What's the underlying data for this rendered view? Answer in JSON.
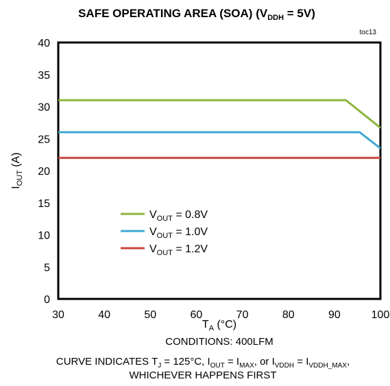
{
  "chart_data": {
    "type": "line",
    "title": {
      "main": "SAFE OPERATING AREA (SOA) (V",
      "sub": "DDH",
      "tail": " = 5V)"
    },
    "tag": "toc13",
    "xlabel": {
      "main": "T",
      "sub": "A",
      "tail": " (°C)"
    },
    "ylabel": {
      "main": "I",
      "sub": "OUT",
      "tail": " (A)"
    },
    "xlim": [
      30,
      100
    ],
    "ylim": [
      0,
      40
    ],
    "xticks": [
      30,
      40,
      50,
      60,
      70,
      80,
      90,
      100
    ],
    "yticks": [
      0,
      5,
      10,
      15,
      20,
      25,
      30,
      35,
      40
    ],
    "grid": false,
    "legend_position": "center-left",
    "series": [
      {
        "name": "0.8V",
        "label_main": "V",
        "label_sub": "OUT",
        "label_tail": " = 0.8V",
        "color": "#8db63c",
        "x": [
          30,
          92.5,
          100
        ],
        "y": [
          31,
          31,
          26.7
        ]
      },
      {
        "name": "1.0V",
        "label_main": "V",
        "label_sub": "OUT",
        "label_tail": " = 1.0V",
        "color": "#3ea9d0",
        "x": [
          30,
          95.5,
          100
        ],
        "y": [
          26,
          26,
          23.5
        ]
      },
      {
        "name": "1.2V",
        "label_main": "V",
        "label_sub": "OUT",
        "label_tail": " = 1.2V",
        "color": "#c8453f",
        "x": [
          30,
          100
        ],
        "y": [
          22,
          22
        ]
      }
    ],
    "annotations": {
      "conditions": "CONDITIONS:  400LFM",
      "curve_note": {
        "p1": "CURVE INDICATES  T",
        "s1": "J",
        "p2": " = 125°C,  I",
        "s2": "OUT",
        "p3": " = I",
        "s3": "MAX",
        "p4": ",  or I",
        "s4": "VDDH",
        "p5": " = I",
        "s5": "VDDH_MAX",
        "p6": ","
      },
      "curve_note_line2": "WHICHEVER HAPPENS FIRST"
    }
  }
}
